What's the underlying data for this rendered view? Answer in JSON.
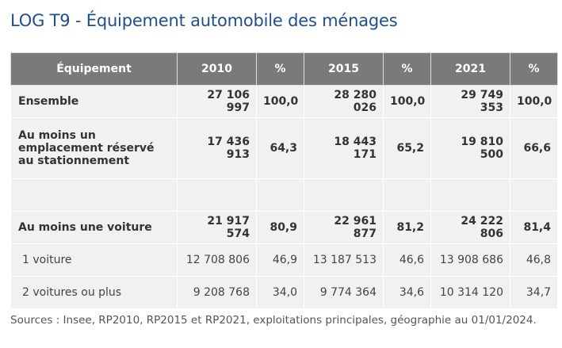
{
  "title": "LOG T9 - Équipement automobile des ménages",
  "table": {
    "headers": [
      "Équipement",
      "2010",
      "%",
      "2015",
      "%",
      "2021",
      "%"
    ],
    "rows": [
      {
        "label": "Ensemble",
        "values": [
          "27 106 997",
          "100,0",
          "28 280 026",
          "100,0",
          "29 749 353",
          "100,0"
        ]
      },
      {
        "label": "Au moins un emplacement réservé au stationnement",
        "values": [
          "17 436 913",
          "64,3",
          "18 443 171",
          "65,2",
          "19 810 500",
          "66,6"
        ]
      },
      {
        "label": "",
        "values": [
          "",
          "",
          "",
          "",
          "",
          ""
        ]
      },
      {
        "label": "Au moins une voiture",
        "values": [
          "21 917 574",
          "80,9",
          "22 961 877",
          "81,2",
          "24 222 806",
          "81,4"
        ]
      },
      {
        "label": "1 voiture",
        "values": [
          "12 708 806",
          "46,9",
          "13 187 513",
          "46,6",
          "13 908 686",
          "46,8"
        ]
      },
      {
        "label": "2 voitures ou plus",
        "values": [
          "9 208 768",
          "34,0",
          "9 774 364",
          "34,6",
          "10 314 120",
          "34,7"
        ]
      }
    ]
  },
  "source": "Sources : Insee, RP2010, RP2015 et RP2021, exploitations principales, géographie au 01/01/2024."
}
